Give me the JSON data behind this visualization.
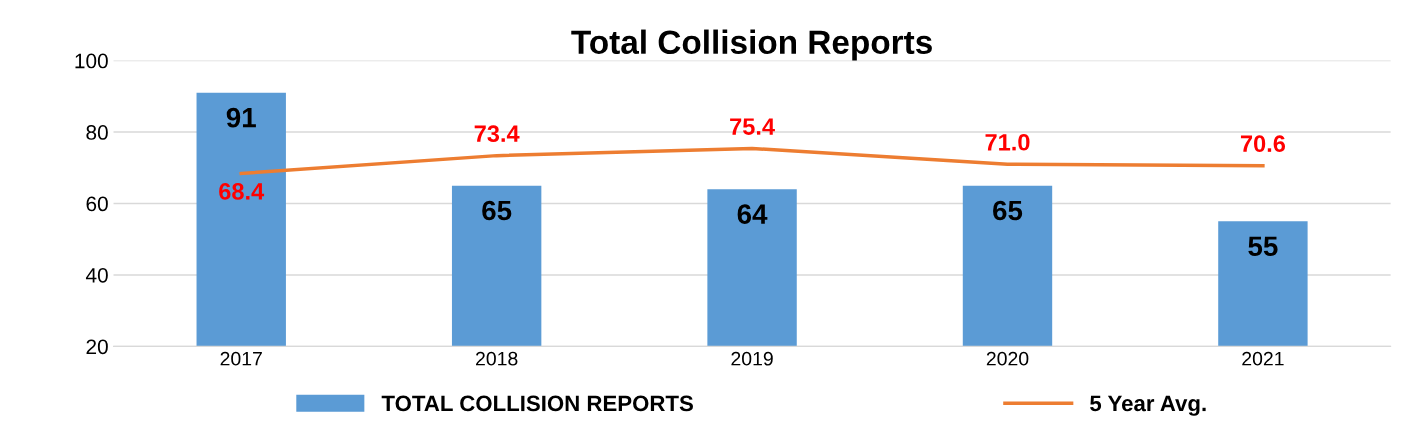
{
  "chart_data": {
    "type": "bar",
    "title": "Total Collision Reports",
    "categories": [
      "2017",
      "2018",
      "2019",
      "2020",
      "2021"
    ],
    "series": [
      {
        "name": "TOTAL COLLISION REPORTS",
        "color": "#5b9bd5",
        "values": [
          91,
          65,
          64,
          65,
          55
        ]
      },
      {
        "name": "5 Year Avg.",
        "type": "line",
        "color": "#ed7d31",
        "values": [
          68.4,
          73.4,
          75.4,
          71.0,
          70.6
        ],
        "value_labels": [
          "68.4",
          "73.4",
          "75.4",
          "71.0",
          "70.6"
        ]
      }
    ],
    "data_labels": true,
    "ylim": [
      20,
      100
    ],
    "yticks": [
      20,
      40,
      60,
      80,
      100
    ],
    "grid": "y",
    "legend": "bottom",
    "marker": "none",
    "line_style": "solid"
  }
}
